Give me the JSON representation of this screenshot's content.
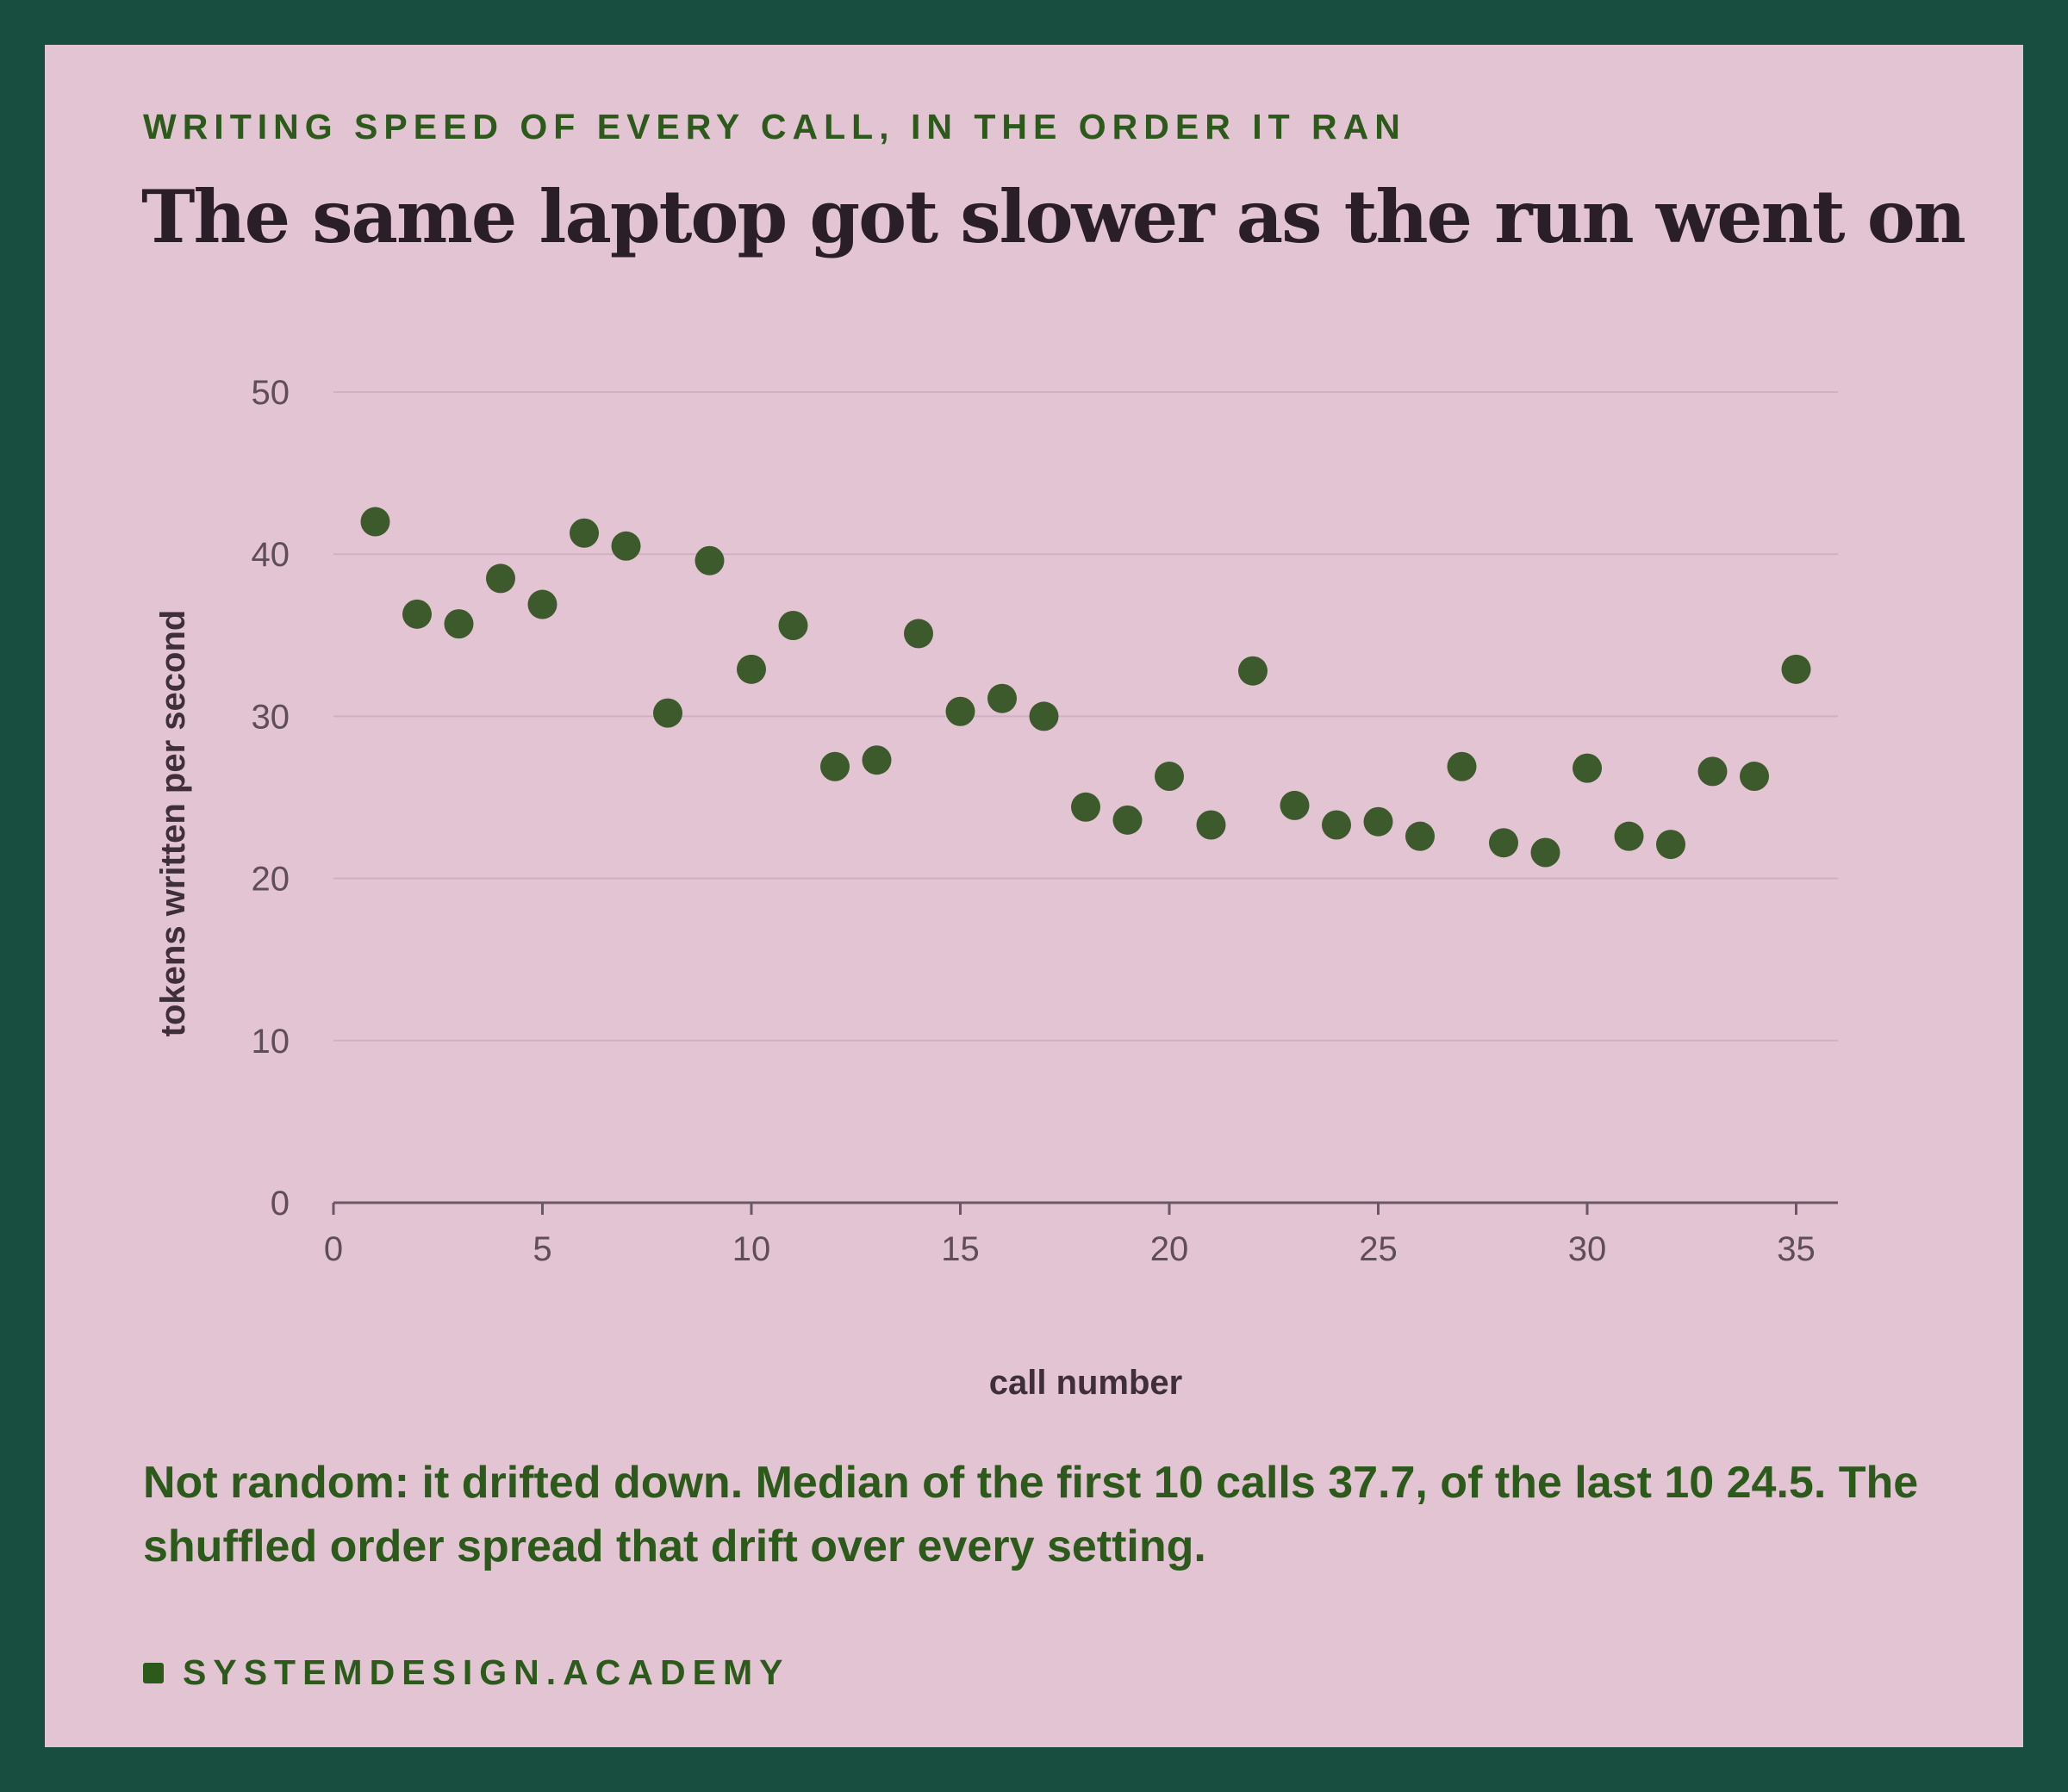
{
  "kicker": "WRITING SPEED OF EVERY CALL, IN THE ORDER IT RAN",
  "title": "The same laptop got slower as the run went on",
  "note": "Not random: it drifted down. Median of the first 10 calls 37.7, of the last 10 24.5. The shuffled order spread that drift over every setting.",
  "footer": "SYSTEMDESIGN.ACADEMY",
  "colors": {
    "frame": "#174e40",
    "background": "#e3c4d3",
    "accent": "#2b5a1a",
    "point": "#3c5a2c",
    "grid": "#cfb1c1",
    "axis": "#6b5766"
  },
  "chart_data": {
    "type": "scatter",
    "xlabel": "call number",
    "ylabel": "tokens written per second",
    "xlim": [
      0,
      36
    ],
    "ylim": [
      0,
      50
    ],
    "x_ticks": [
      0,
      5,
      10,
      15,
      20,
      25,
      30,
      35
    ],
    "y_ticks": [
      0,
      10,
      20,
      30,
      40,
      50
    ],
    "grid": "horizontal",
    "series": [
      {
        "points": [
          [
            1,
            42.0
          ],
          [
            2,
            36.3
          ],
          [
            3,
            35.7
          ],
          [
            4,
            38.5
          ],
          [
            5,
            36.9
          ],
          [
            6,
            41.3
          ],
          [
            7,
            40.5
          ],
          [
            8,
            30.2
          ],
          [
            9,
            39.6
          ],
          [
            10,
            32.9
          ],
          [
            11,
            35.6
          ],
          [
            12,
            26.9
          ],
          [
            13,
            27.3
          ],
          [
            14,
            35.1
          ],
          [
            15,
            30.3
          ],
          [
            16,
            31.1
          ],
          [
            17,
            30.0
          ],
          [
            18,
            24.4
          ],
          [
            19,
            23.6
          ],
          [
            20,
            26.3
          ],
          [
            21,
            23.3
          ],
          [
            22,
            32.8
          ],
          [
            23,
            24.5
          ],
          [
            24,
            23.3
          ],
          [
            25,
            23.5
          ],
          [
            26,
            22.6
          ],
          [
            27,
            26.9
          ],
          [
            28,
            22.2
          ],
          [
            29,
            21.6
          ],
          [
            30,
            26.8
          ],
          [
            31,
            22.6
          ],
          [
            32,
            22.1
          ],
          [
            33,
            26.6
          ],
          [
            34,
            26.3
          ],
          [
            35,
            32.9
          ]
        ]
      }
    ]
  }
}
